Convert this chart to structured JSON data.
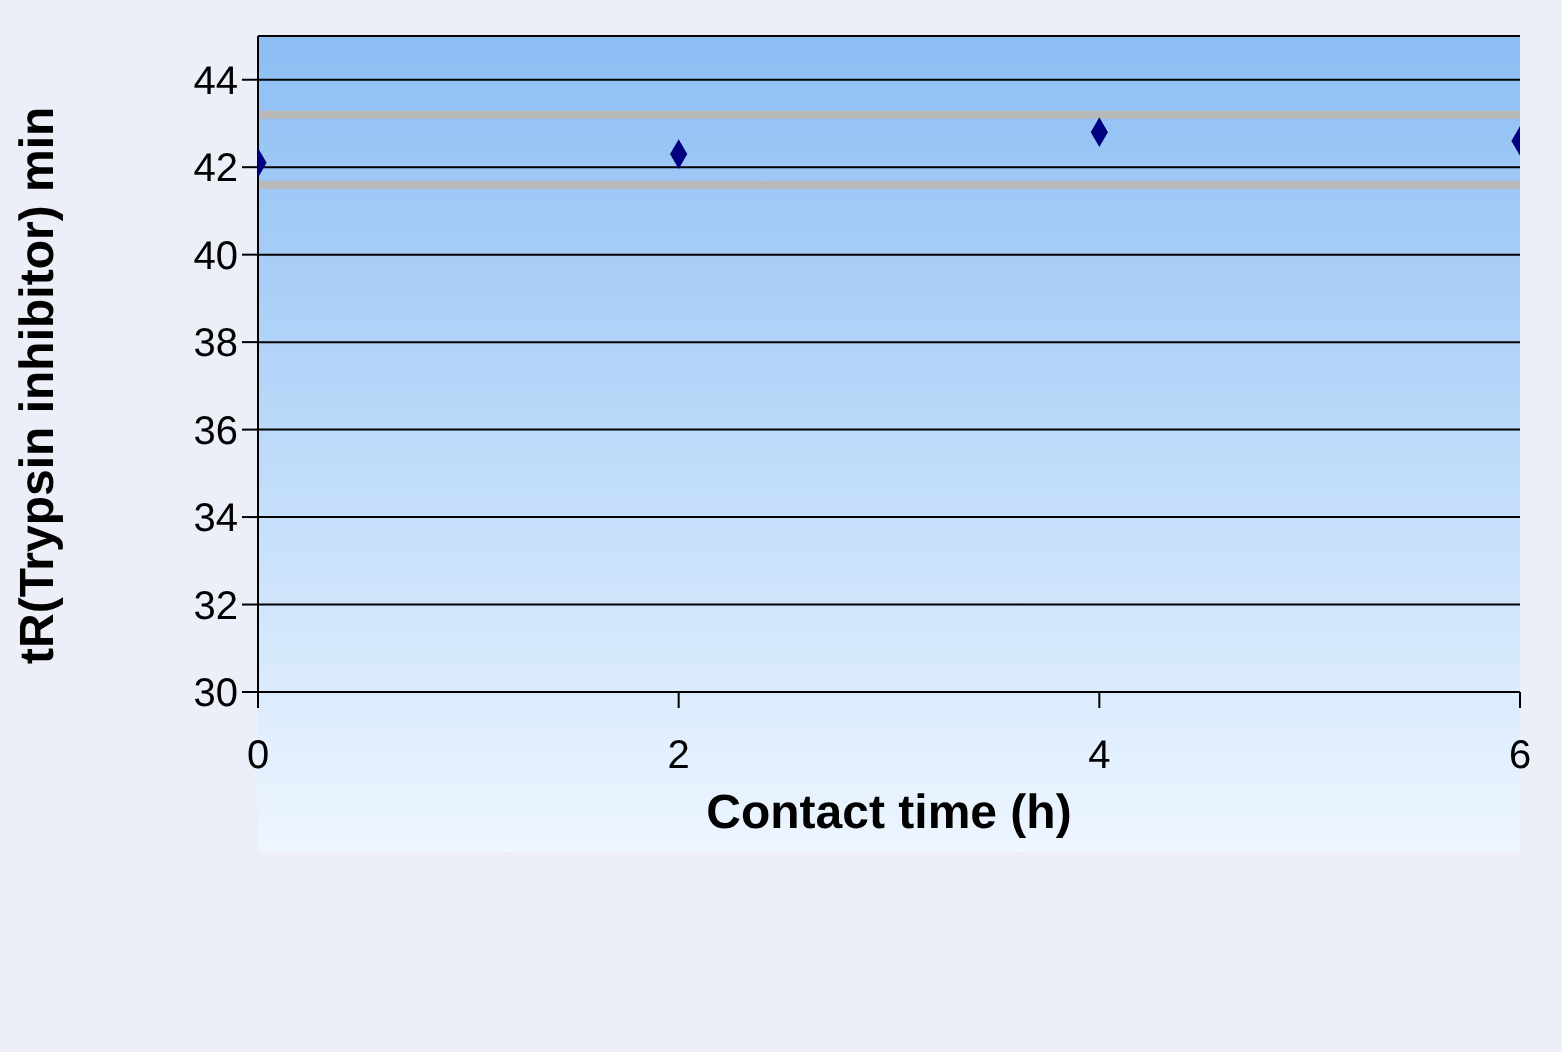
{
  "chart_data": {
    "type": "scatter",
    "xlabel": "Contact time (h)",
    "ylabel": "tR(Trypsin inhibitor) min",
    "x": [
      0,
      2,
      4,
      6
    ],
    "series": [
      {
        "color": "#000080",
        "values": [
          42.1,
          42.3,
          42.8,
          42.6
        ]
      }
    ],
    "xlim": [
      0,
      6
    ],
    "xticks": [
      0,
      2,
      4,
      6
    ],
    "ylim": [
      30,
      45
    ],
    "yticks": [
      30,
      32,
      34,
      36,
      38,
      40,
      42,
      44
    ],
    "ref_lines": [
      {
        "axis": "y",
        "value": 43.2,
        "color": "#b8b8b8"
      },
      {
        "axis": "y",
        "value": 41.6,
        "color": "#b8b8b8"
      }
    ],
    "grid": "y",
    "marker": "diamond",
    "legend": false
  }
}
